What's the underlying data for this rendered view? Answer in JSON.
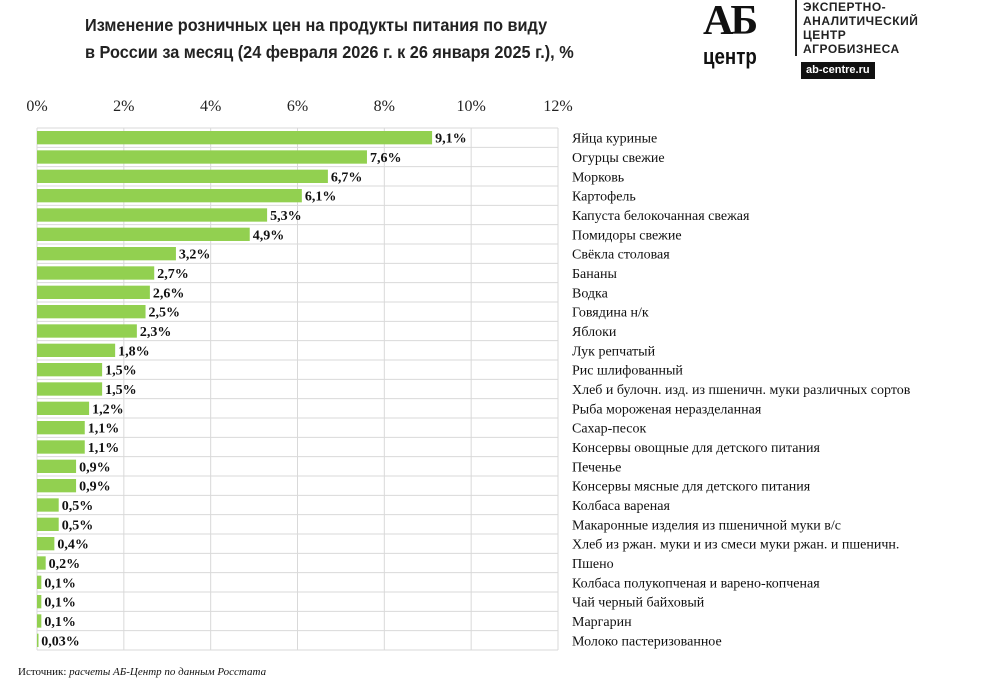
{
  "title_line1": "Изменение розничных цен на продукты питания по виду",
  "title_line2": "в России за месяц (24 февраля 2026 г. к 26 января 2025 г.), %",
  "logo": {
    "big": "АБ",
    "small": "центр",
    "lines": [
      "ЭКСПЕРТНО-",
      "АНАЛИТИЧЕСКИЙ",
      "ЦЕНТР",
      "АГРОБИЗНЕСА"
    ],
    "url": "ab-centre.ru"
  },
  "source_label": "Источник:",
  "source_text": "расчеты АБ-Центр по данным Росстата",
  "chart_data": {
    "type": "bar",
    "orientation": "horizontal",
    "bar_color": "#92d050",
    "grid": true,
    "xlim": [
      0,
      12
    ],
    "ticks": [
      "0%",
      "2%",
      "4%",
      "6%",
      "8%",
      "10%",
      "12%"
    ],
    "tick_values": [
      0,
      2,
      4,
      6,
      8,
      10,
      12
    ],
    "categories": [
      "Яйца куриные",
      "Огурцы свежие",
      "Морковь",
      "Картофель",
      "Капуста белокочанная свежая",
      "Помидоры свежие",
      "Свёкла столовая",
      "Бананы",
      "Водка",
      "Говядина н/к",
      "Яблоки",
      "Лук репчатый",
      "Рис шлифованный",
      "Хлеб и булочн. изд. из пшеничн. муки различных сортов",
      "Рыба мороженая неразделанная",
      "Сахар-песок",
      "Консервы овощные для детского питания",
      "Печенье",
      "Консервы мясные для детского питания",
      "Колбаса вареная",
      "Макаронные изделия из пшеничной муки в/с",
      "Хлеб из ржан. муки и из смеси муки ржан. и пшеничн.",
      "Пшено",
      "Колбаса полукопченая и варено-копченая",
      "Чай черный байховый",
      "Маргарин",
      "Молоко пастеризованное"
    ],
    "values": [
      9.1,
      7.6,
      6.7,
      6.1,
      5.3,
      4.9,
      3.2,
      2.7,
      2.6,
      2.5,
      2.3,
      1.8,
      1.5,
      1.5,
      1.2,
      1.1,
      1.1,
      0.9,
      0.9,
      0.5,
      0.5,
      0.4,
      0.2,
      0.1,
      0.1,
      0.1,
      0.03
    ],
    "labels": [
      "9,1%",
      "7,6%",
      "6,7%",
      "6,1%",
      "5,3%",
      "4,9%",
      "3,2%",
      "2,7%",
      "2,6%",
      "2,5%",
      "2,3%",
      "1,8%",
      "1,5%",
      "1,5%",
      "1,2%",
      "1,1%",
      "1,1%",
      "0,9%",
      "0,9%",
      "0,5%",
      "0,5%",
      "0,4%",
      "0,2%",
      "0,1%",
      "0,1%",
      "0,1%",
      "0,03%"
    ]
  }
}
